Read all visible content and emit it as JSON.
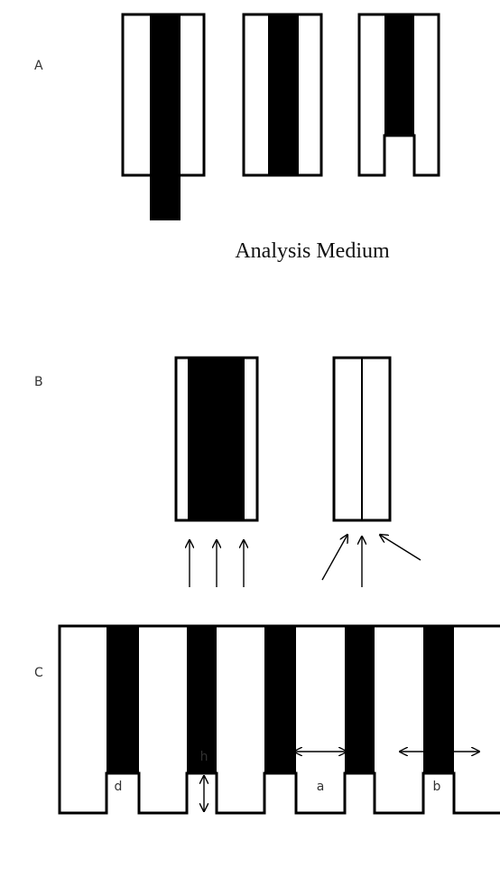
{
  "panel_a": {
    "label": "A",
    "caption": "Analysis Medium"
  },
  "panel_b": {
    "label": "B"
  },
  "panel_c": {
    "label": "C",
    "dimensions": [
      "d",
      "h",
      "a",
      "b"
    ]
  }
}
